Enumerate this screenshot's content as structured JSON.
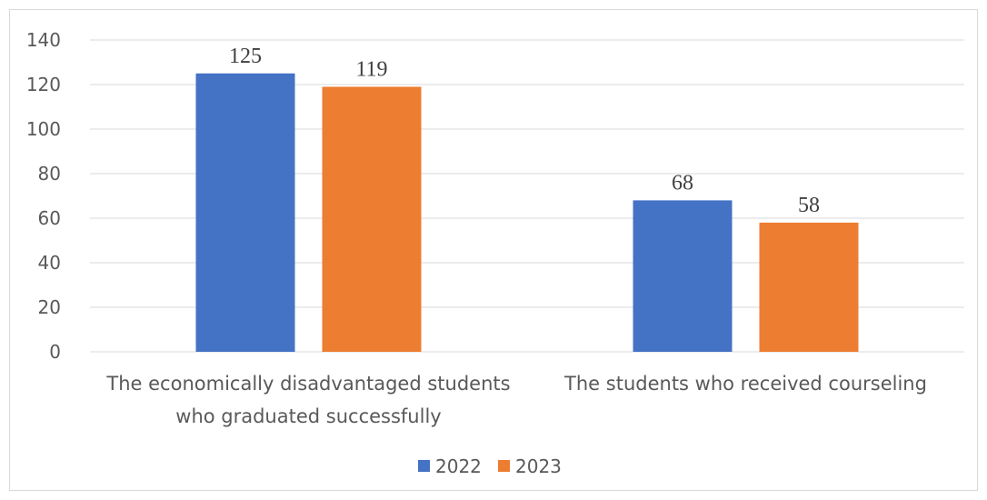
{
  "chart_data": {
    "type": "bar",
    "title": "",
    "xlabel": "",
    "ylabel": "",
    "ylim": [
      0,
      140
    ],
    "yticks": [
      0,
      20,
      40,
      60,
      80,
      100,
      120,
      140
    ],
    "grid": true,
    "legend_position": "bottom",
    "categories": [
      [
        "The economically disadvantaged students",
        "who graduated successfully"
      ],
      [
        "The students who received courseling"
      ]
    ],
    "series": [
      {
        "name": "2022",
        "values": [
          125,
          68
        ],
        "color": "#4472c4"
      },
      {
        "name": "2023",
        "values": [
          119,
          58
        ],
        "color": "#ed7d31"
      }
    ]
  }
}
